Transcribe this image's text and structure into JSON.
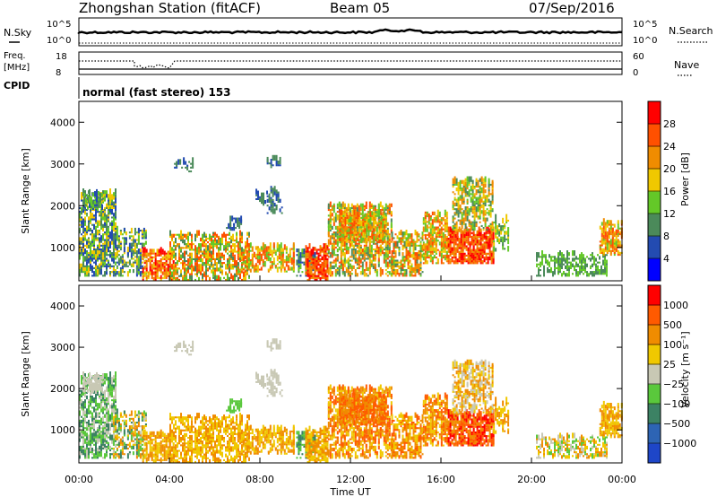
{
  "header": {
    "station": "Zhongshan Station (fitACF)",
    "beam": "Beam 05",
    "date": "07/Sep/2016"
  },
  "top_panels": {
    "nsky_label": "N.Sky",
    "nsearch_label": "N.Search",
    "nsky_ticks": [
      "10^5",
      "10^0"
    ],
    "nsearch_ticks": [
      "10^5",
      "10^0"
    ],
    "freq_label_1": "Freq.",
    "freq_label_2": "[MHz]",
    "freq_ticks": [
      "18",
      "8"
    ],
    "nave_label": "Nave",
    "nave_ticks": [
      "60",
      "0"
    ],
    "cpid_label": "CPID",
    "cpid_text": "normal (fast stereo) 153"
  },
  "chart_data": [
    {
      "type": "heatmap",
      "name": "power",
      "ylabel": "Slant Range [km]",
      "yticks": [
        "1000",
        "2000",
        "3000",
        "4000"
      ],
      "ylim": [
        200,
        4500
      ],
      "colorbar_label": "Power [dB]",
      "colorbar_ticks": [
        "4",
        "8",
        "12",
        "16",
        "20",
        "24",
        "28"
      ],
      "colors": [
        "#0000ff",
        "#234bb1",
        "#4b8a5a",
        "#64c828",
        "#f0c800",
        "#f08c00",
        "#ff5000",
        "#ff0000"
      ]
    },
    {
      "type": "heatmap",
      "name": "velocity",
      "ylabel": "Slant Range [km]",
      "yticks": [
        "1000",
        "2000",
        "3000",
        "4000"
      ],
      "ylim": [
        200,
        4500
      ],
      "colorbar_label": "Velocity [m s⁻¹]",
      "colorbar_ticks": [
        "1000",
        "500",
        "100",
        "25",
        "−25",
        "−100",
        "−500",
        "−1000"
      ],
      "colors": [
        "#1e46c8",
        "#2d64b4",
        "#3c8264",
        "#5ac83c",
        "#c8c8b4",
        "#f0c800",
        "#f08c00",
        "#ff5a00",
        "#ff0000"
      ]
    }
  ],
  "xaxis": {
    "ticks": [
      "00:00",
      "04:00",
      "08:00",
      "12:00",
      "16:00",
      "20:00",
      "00:00"
    ],
    "label": "Time UT"
  }
}
